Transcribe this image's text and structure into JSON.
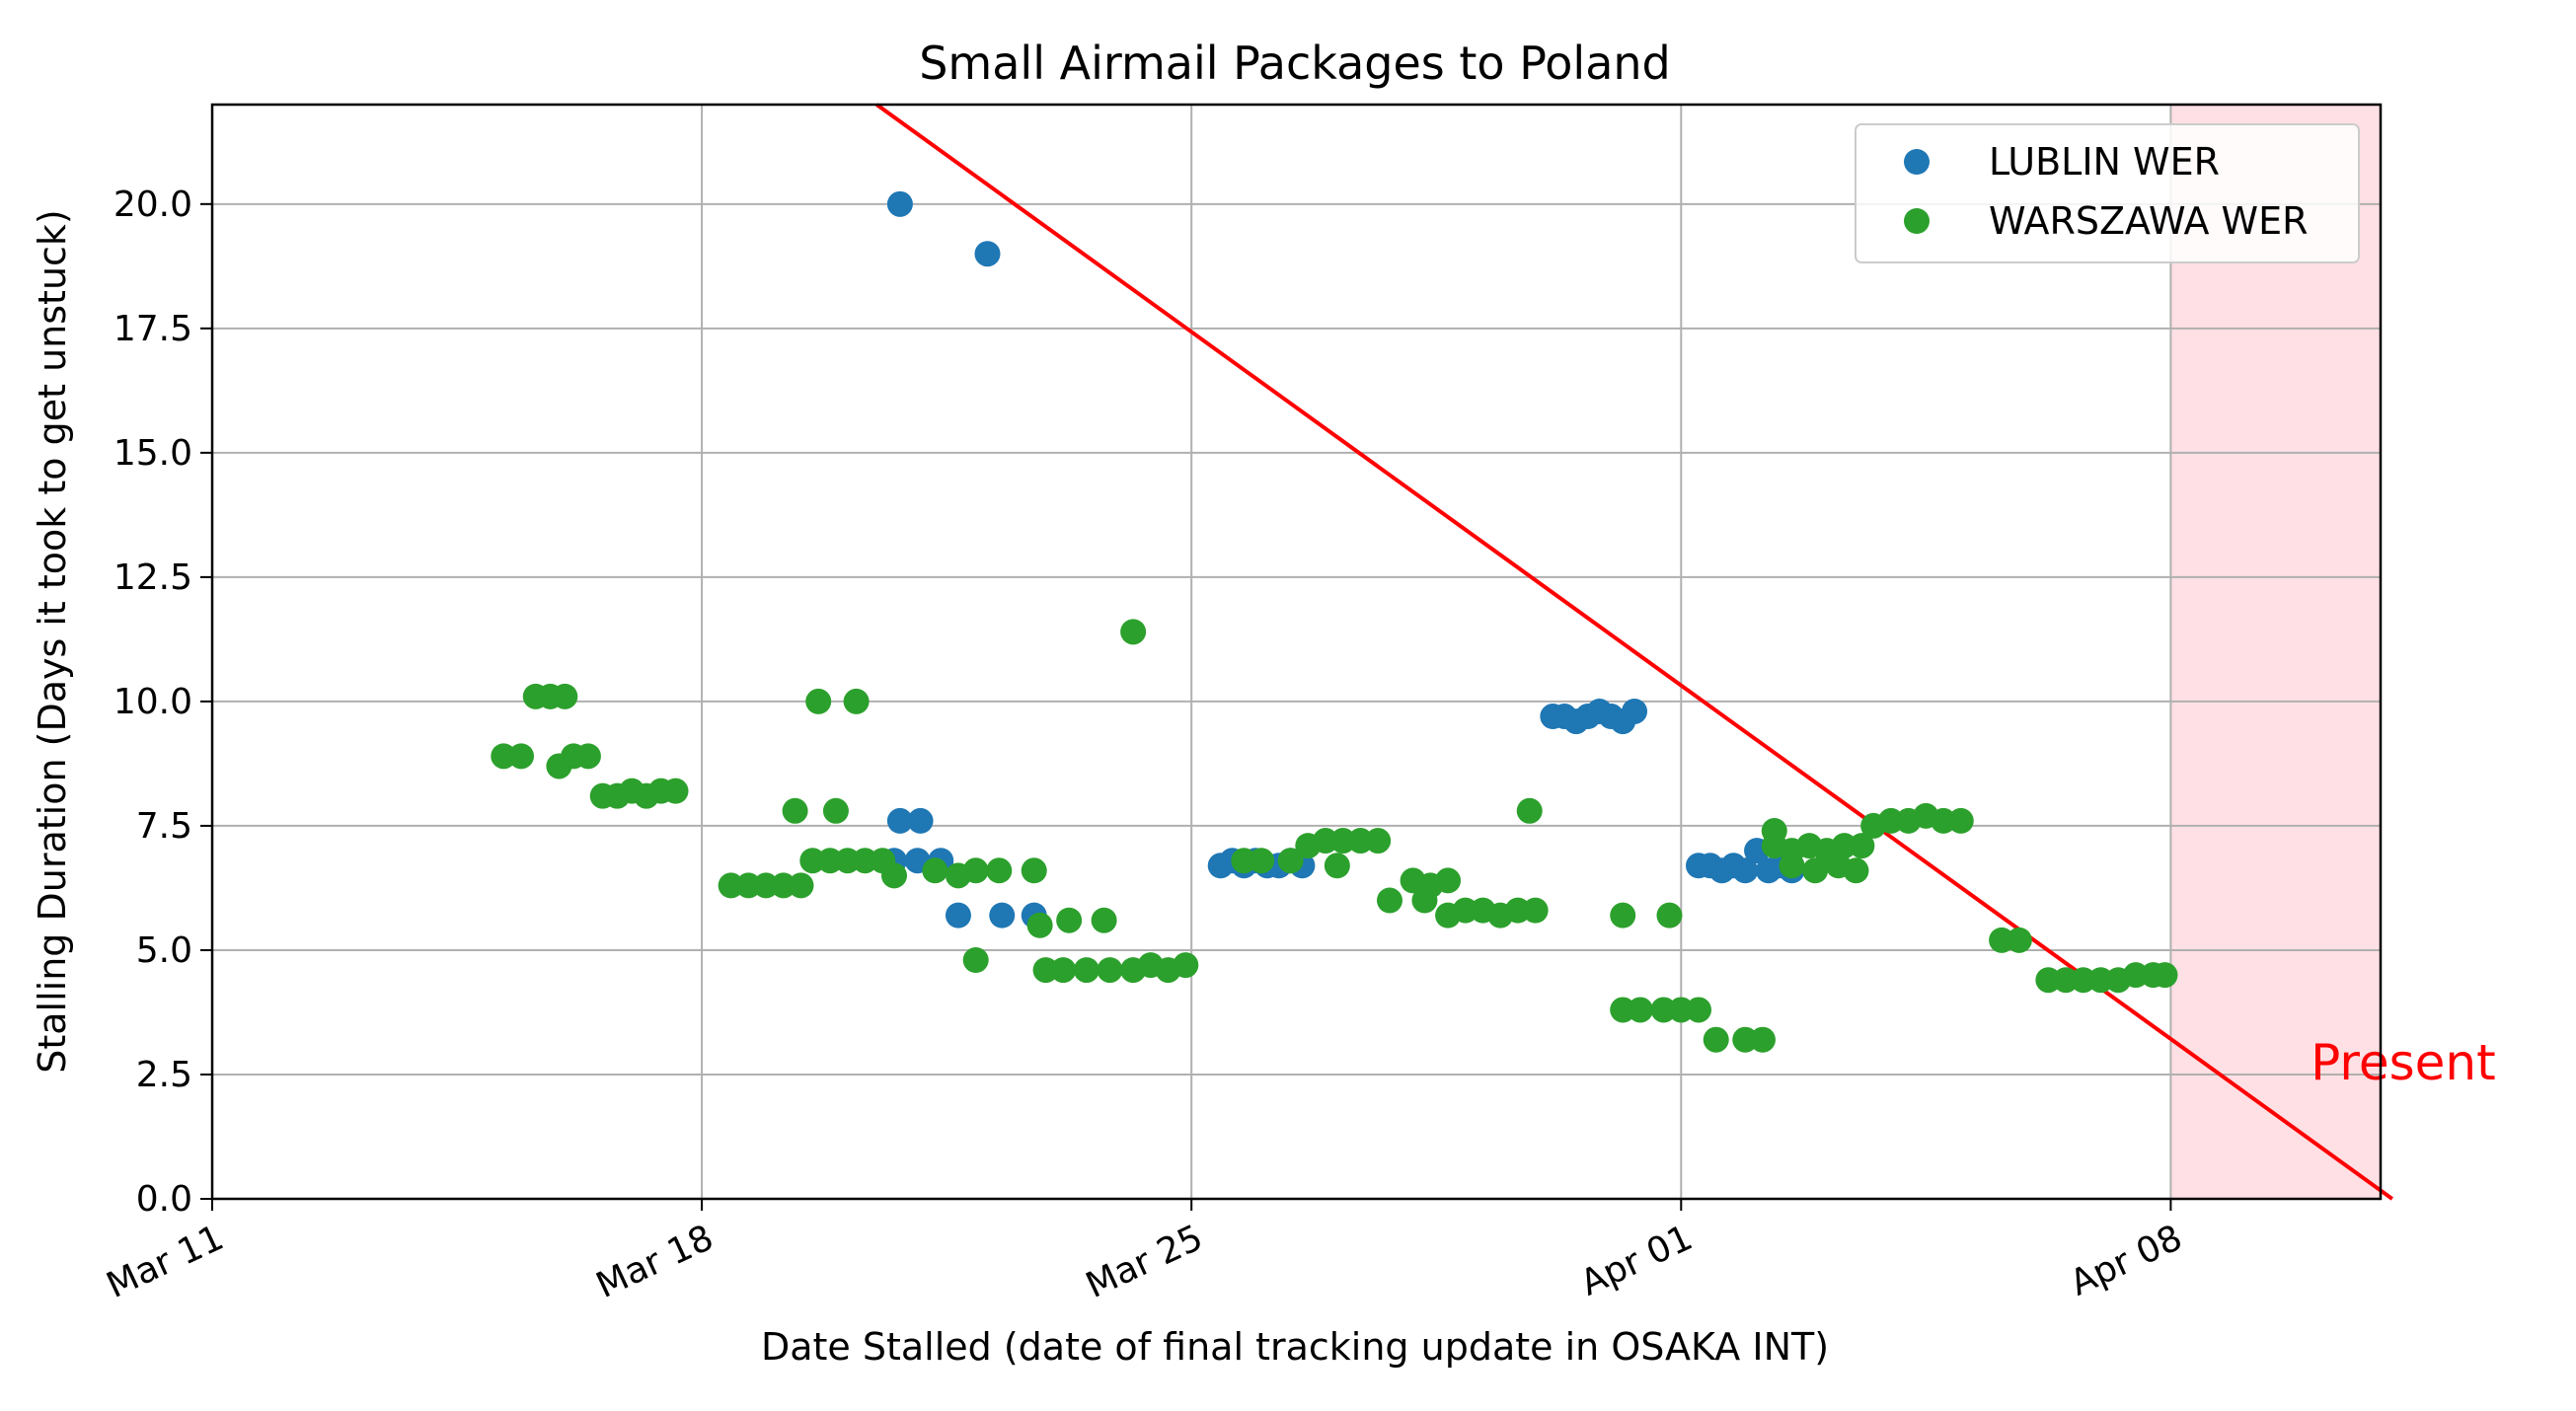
{
  "chart_data": {
    "type": "scatter",
    "title": "Small Airmail Packages to Poland",
    "xlabel": "Date Stalled (date of final tracking update in OSAKA INT)",
    "ylabel": "Stalling Duration (Days it took to get unstuck)",
    "x_unit": "date (2024)",
    "xlim": [
      "2024-03-11",
      "2024-04-11"
    ],
    "ylim": [
      0,
      22
    ],
    "xticks": [
      {
        "date": "2024-03-11",
        "label": "Mar 11"
      },
      {
        "date": "2024-03-18",
        "label": "Mar 18"
      },
      {
        "date": "2024-03-25",
        "label": "Mar 25"
      },
      {
        "date": "2024-04-01",
        "label": "Apr 01"
      },
      {
        "date": "2024-04-08",
        "label": "Apr 08"
      }
    ],
    "yticks": [
      {
        "value": 0,
        "label": "0.0"
      },
      {
        "value": 2.5,
        "label": "2.5"
      },
      {
        "value": 5,
        "label": "5.0"
      },
      {
        "value": 7.5,
        "label": "7.5"
      },
      {
        "value": 10,
        "label": "10.0"
      },
      {
        "value": 12.5,
        "label": "12.5"
      },
      {
        "value": 15,
        "label": "15.0"
      },
      {
        "value": 17.5,
        "label": "17.5"
      },
      {
        "value": 20,
        "label": "20.0"
      }
    ],
    "grid": true,
    "legend_position": "top-right",
    "annotation": {
      "text": "Present",
      "x": "2024-04-10",
      "y": 2.4,
      "color": "#ff0000"
    },
    "present_line": {
      "color": "#ff0000",
      "from": [
        "2024-03-20 12:00",
        22.0
      ],
      "to": [
        "2024-04-11 04:00",
        0.0
      ]
    },
    "present_region": {
      "color": "#ffe0e4",
      "from": "2024-04-08",
      "to": "2024-04-12"
    },
    "series": [
      {
        "name": "LUBLIN WER",
        "color": "#1f77b4",
        "points": [
          [
            "2024-03-20 20:00",
            20.0
          ],
          [
            "2024-03-22 02:00",
            19.0
          ],
          [
            "2024-03-20 20:00",
            7.6
          ],
          [
            "2024-03-21 03:00",
            7.6
          ],
          [
            "2024-03-20 18:00",
            6.8
          ],
          [
            "2024-03-21 02:00",
            6.8
          ],
          [
            "2024-03-21 10:00",
            6.8
          ],
          [
            "2024-03-21 16:00",
            5.7
          ],
          [
            "2024-03-22 07:00",
            5.7
          ],
          [
            "2024-03-22 18:00",
            5.7
          ],
          [
            "2024-03-25 10:00",
            6.7
          ],
          [
            "2024-03-25 14:00",
            6.8
          ],
          [
            "2024-03-25 18:00",
            6.7
          ],
          [
            "2024-03-25 22:00",
            6.8
          ],
          [
            "2024-03-26 02:00",
            6.7
          ],
          [
            "2024-03-26 06:00",
            6.7
          ],
          [
            "2024-03-26 10:00",
            6.8
          ],
          [
            "2024-03-26 14:00",
            6.7
          ],
          [
            "2024-03-30 04:00",
            9.7
          ],
          [
            "2024-03-30 08:00",
            9.7
          ],
          [
            "2024-03-30 12:00",
            9.6
          ],
          [
            "2024-03-30 16:00",
            9.7
          ],
          [
            "2024-03-30 20:00",
            9.8
          ],
          [
            "2024-03-31 00:00",
            9.7
          ],
          [
            "2024-03-31 04:00",
            9.6
          ],
          [
            "2024-03-31 08:00",
            9.8
          ],
          [
            "2024-04-01 06:00",
            6.7
          ],
          [
            "2024-04-01 10:00",
            6.7
          ],
          [
            "2024-04-01 14:00",
            6.6
          ],
          [
            "2024-04-01 18:00",
            6.7
          ],
          [
            "2024-04-01 22:00",
            6.6
          ],
          [
            "2024-04-02 02:00",
            7.0
          ],
          [
            "2024-04-02 06:00",
            6.6
          ],
          [
            "2024-04-02 10:00",
            6.7
          ],
          [
            "2024-04-02 14:00",
            6.6
          ]
        ]
      },
      {
        "name": "WARSZAWA WER",
        "color": "#2ca02c",
        "points": [
          [
            "2024-03-15 04:00",
            8.9
          ],
          [
            "2024-03-15 10:00",
            8.9
          ],
          [
            "2024-03-15 15:00",
            10.1
          ],
          [
            "2024-03-15 20:00",
            10.1
          ],
          [
            "2024-03-16 01:00",
            10.1
          ],
          [
            "2024-03-15 23:00",
            8.7
          ],
          [
            "2024-03-16 04:00",
            8.9
          ],
          [
            "2024-03-16 09:00",
            8.9
          ],
          [
            "2024-03-16 14:00",
            8.1
          ],
          [
            "2024-03-16 19:00",
            8.1
          ],
          [
            "2024-03-17 00:00",
            8.2
          ],
          [
            "2024-03-17 05:00",
            8.1
          ],
          [
            "2024-03-17 10:00",
            8.2
          ],
          [
            "2024-03-17 15:00",
            8.2
          ],
          [
            "2024-03-18 10:00",
            6.3
          ],
          [
            "2024-03-18 16:00",
            6.3
          ],
          [
            "2024-03-18 22:00",
            6.3
          ],
          [
            "2024-03-19 04:00",
            6.3
          ],
          [
            "2024-03-19 10:00",
            6.3
          ],
          [
            "2024-03-19 08:00",
            7.8
          ],
          [
            "2024-03-19 22:00",
            7.8
          ],
          [
            "2024-03-19 16:00",
            10.0
          ],
          [
            "2024-03-20 05:00",
            10.0
          ],
          [
            "2024-03-19 14:00",
            6.8
          ],
          [
            "2024-03-19 20:00",
            6.8
          ],
          [
            "2024-03-20 02:00",
            6.8
          ],
          [
            "2024-03-20 08:00",
            6.8
          ],
          [
            "2024-03-20 14:00",
            6.8
          ],
          [
            "2024-03-20 18:00",
            6.5
          ],
          [
            "2024-03-21 08:00",
            6.6
          ],
          [
            "2024-03-21 16:00",
            6.5
          ],
          [
            "2024-03-21 22:00",
            6.6
          ],
          [
            "2024-03-22 06:00",
            6.6
          ],
          [
            "2024-03-22 18:00",
            6.6
          ],
          [
            "2024-03-21 22:00",
            4.8
          ],
          [
            "2024-03-22 20:00",
            5.5
          ],
          [
            "2024-03-23 06:00",
            5.6
          ],
          [
            "2024-03-23 18:00",
            5.6
          ],
          [
            "2024-03-22 22:00",
            4.6
          ],
          [
            "2024-03-23 04:00",
            4.6
          ],
          [
            "2024-03-23 12:00",
            4.6
          ],
          [
            "2024-03-23 20:00",
            4.6
          ],
          [
            "2024-03-24 04:00",
            4.6
          ],
          [
            "2024-03-24 10:00",
            4.7
          ],
          [
            "2024-03-24 16:00",
            4.6
          ],
          [
            "2024-03-24 22:00",
            4.7
          ],
          [
            "2024-03-24 04:00",
            11.4
          ],
          [
            "2024-03-25 18:00",
            6.8
          ],
          [
            "2024-03-26 00:00",
            6.8
          ],
          [
            "2024-03-26 10:00",
            6.8
          ],
          [
            "2024-03-26 16:00",
            7.1
          ],
          [
            "2024-03-26 22:00",
            7.2
          ],
          [
            "2024-03-27 04:00",
            7.2
          ],
          [
            "2024-03-27 10:00",
            7.2
          ],
          [
            "2024-03-27 16:00",
            7.2
          ],
          [
            "2024-03-27 02:00",
            6.7
          ],
          [
            "2024-03-27 20:00",
            6.0
          ],
          [
            "2024-03-28 04:00",
            6.4
          ],
          [
            "2024-03-28 10:00",
            6.3
          ],
          [
            "2024-03-28 16:00",
            6.4
          ],
          [
            "2024-03-28 08:00",
            6.0
          ],
          [
            "2024-03-28 16:00",
            5.7
          ],
          [
            "2024-03-28 22:00",
            5.8
          ],
          [
            "2024-03-29 04:00",
            5.8
          ],
          [
            "2024-03-29 10:00",
            5.7
          ],
          [
            "2024-03-29 16:00",
            5.8
          ],
          [
            "2024-03-29 22:00",
            5.8
          ],
          [
            "2024-03-29 20:00",
            7.8
          ],
          [
            "2024-03-31 04:00",
            5.7
          ],
          [
            "2024-03-31 20:00",
            5.7
          ],
          [
            "2024-03-31 04:00",
            3.8
          ],
          [
            "2024-03-31 10:00",
            3.8
          ],
          [
            "2024-03-31 18:00",
            3.8
          ],
          [
            "2024-04-01 00:00",
            3.8
          ],
          [
            "2024-04-01 06:00",
            3.8
          ],
          [
            "2024-04-01 12:00",
            3.2
          ],
          [
            "2024-04-01 22:00",
            3.2
          ],
          [
            "2024-04-02 04:00",
            3.2
          ],
          [
            "2024-04-02 08:00",
            7.1
          ],
          [
            "2024-04-02 14:00",
            7.0
          ],
          [
            "2024-04-02 20:00",
            7.1
          ],
          [
            "2024-04-03 02:00",
            7.0
          ],
          [
            "2024-04-03 08:00",
            7.1
          ],
          [
            "2024-04-03 14:00",
            7.1
          ],
          [
            "2024-04-02 08:00",
            7.4
          ],
          [
            "2024-04-02 14:00",
            6.7
          ],
          [
            "2024-04-02 22:00",
            6.6
          ],
          [
            "2024-04-03 06:00",
            6.7
          ],
          [
            "2024-04-03 12:00",
            6.6
          ],
          [
            "2024-04-03 18:00",
            7.5
          ],
          [
            "2024-04-04 00:00",
            7.6
          ],
          [
            "2024-04-04 06:00",
            7.6
          ],
          [
            "2024-04-04 12:00",
            7.7
          ],
          [
            "2024-04-04 18:00",
            7.6
          ],
          [
            "2024-04-05 00:00",
            7.6
          ],
          [
            "2024-04-05 14:00",
            5.2
          ],
          [
            "2024-04-05 20:00",
            5.2
          ],
          [
            "2024-04-06 06:00",
            4.4
          ],
          [
            "2024-04-06 12:00",
            4.4
          ],
          [
            "2024-04-06 18:00",
            4.4
          ],
          [
            "2024-04-07 00:00",
            4.4
          ],
          [
            "2024-04-07 06:00",
            4.4
          ],
          [
            "2024-04-07 12:00",
            4.5
          ],
          [
            "2024-04-07 18:00",
            4.5
          ],
          [
            "2024-04-07 22:00",
            4.5
          ]
        ]
      }
    ]
  }
}
